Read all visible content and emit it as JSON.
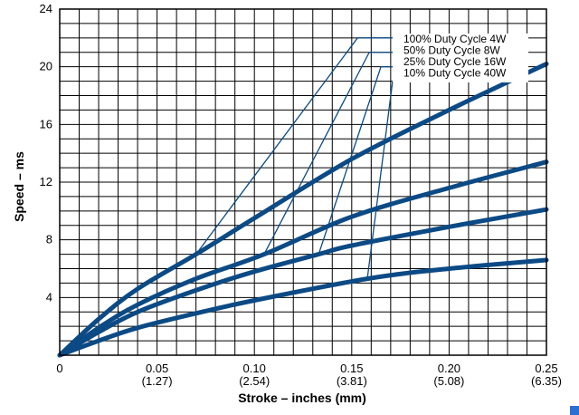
{
  "chart_data": {
    "type": "line",
    "xlabel": "Stroke – inches (mm)",
    "ylabel": "Speed – ms",
    "xlim": [
      0,
      0.25
    ],
    "ylim": [
      0,
      24
    ],
    "x_ticks": [
      {
        "value": 0,
        "label": "0",
        "sublabel": ""
      },
      {
        "value": 0.05,
        "label": "0.05",
        "sublabel": "(1.27)"
      },
      {
        "value": 0.1,
        "label": "0.10",
        "sublabel": "(2.54)"
      },
      {
        "value": 0.15,
        "label": "0.15",
        "sublabel": "(3.81)"
      },
      {
        "value": 0.2,
        "label": "0.20",
        "sublabel": "(5.08)"
      },
      {
        "value": 0.25,
        "label": "0.25",
        "sublabel": "(6.35)"
      }
    ],
    "y_ticks": [
      {
        "value": 4,
        "label": "4"
      },
      {
        "value": 8,
        "label": "8"
      },
      {
        "value": 12,
        "label": "12"
      },
      {
        "value": 16,
        "label": "16"
      },
      {
        "value": 20,
        "label": "20"
      },
      {
        "value": 24,
        "label": "24"
      }
    ],
    "grid": true,
    "grid_step_x": 0.01,
    "grid_step_y": 1,
    "line_color": "#0b4a85",
    "series": [
      {
        "name": "100% Duty Cycle 4W",
        "x": [
          0,
          0.02,
          0.04,
          0.07,
          0.1,
          0.15,
          0.2,
          0.25
        ],
        "y": [
          0,
          2.5,
          4.6,
          7.0,
          9.5,
          13.6,
          17.0,
          20.2
        ]
      },
      {
        "name": "50% Duty Cycle 8W",
        "x": [
          0,
          0.02,
          0.04,
          0.07,
          0.105,
          0.15,
          0.2,
          0.25
        ],
        "y": [
          0,
          1.9,
          3.5,
          5.3,
          7.0,
          9.6,
          11.6,
          13.4
        ]
      },
      {
        "name": "25% Duty Cycle 16W",
        "x": [
          0,
          0.02,
          0.04,
          0.07,
          0.1,
          0.133,
          0.15,
          0.2,
          0.25
        ],
        "y": [
          0,
          1.6,
          3.0,
          4.5,
          5.8,
          7.0,
          7.6,
          8.9,
          10.1
        ]
      },
      {
        "name": "10% Duty Cycle 40W",
        "x": [
          0,
          0.02,
          0.04,
          0.07,
          0.1,
          0.158,
          0.2,
          0.25
        ],
        "y": [
          0,
          1.0,
          1.9,
          2.9,
          3.8,
          5.3,
          6.0,
          6.6
        ]
      }
    ],
    "legend": {
      "placement": "top-right",
      "leaders": [
        {
          "series": 0,
          "point": [
            0.07,
            7.0
          ],
          "kink": [
            0.153,
            22.0
          ]
        },
        {
          "series": 1,
          "point": [
            0.105,
            7.0
          ],
          "kink": [
            0.159,
            21.0
          ]
        },
        {
          "series": 2,
          "point": [
            0.133,
            7.0
          ],
          "kink": [
            0.165,
            20.0
          ]
        },
        {
          "series": 3,
          "point": [
            0.158,
            5.3
          ],
          "kink": [
            0.171,
            19.0
          ]
        }
      ]
    }
  }
}
